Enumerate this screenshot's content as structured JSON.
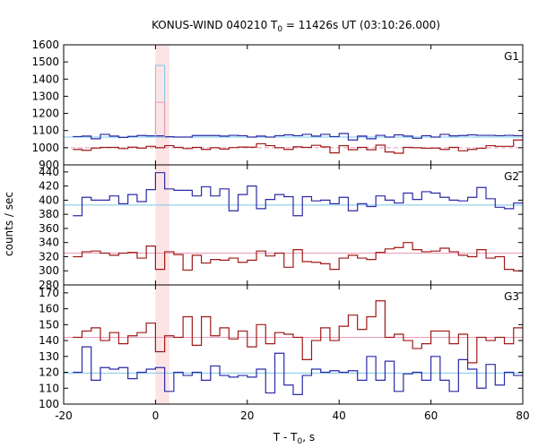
{
  "chart_data": {
    "type": "line",
    "title_main": "KONUS-WIND 040210 T",
    "title_sub": "0",
    "title_rest": " = 11426s UT (03:10:26.000)",
    "xlabel_main": "T - T",
    "xlabel_sub": "0",
    "xlabel_rest": ", s",
    "ylabel": "counts / sec",
    "xlim": [
      -20,
      80
    ],
    "xticks": [
      -20,
      0,
      20,
      40,
      60,
      80
    ],
    "highlight": {
      "x0": 0,
      "x1": 3,
      "color": "#fde4e4"
    },
    "grid": false,
    "panels": [
      {
        "label": "G1",
        "ylim": [
          900,
          1600
        ],
        "yticks": [
          900,
          1000,
          1100,
          1200,
          1300,
          1400,
          1500,
          1600
        ],
        "yticks_labeled": [
          900,
          1000,
          1100,
          1200,
          1300,
          1400,
          1500,
          1600
        ],
        "series": [
          {
            "color": "#2a2aa8",
            "bg": 1062,
            "bg_color": "#78c8e8",
            "x": [
              -17,
              -15,
              -13,
              -11,
              -9,
              -7,
              -5,
              -3,
              -1,
              1,
              3,
              5,
              7,
              9,
              11,
              13,
              15,
              17,
              19,
              21,
              23,
              25,
              27,
              29,
              31,
              33,
              35,
              37,
              39,
              41,
              43,
              45,
              47,
              49,
              51,
              53,
              55,
              57,
              59,
              61,
              63,
              65,
              67,
              69,
              71,
              73,
              75,
              77,
              79
            ],
            "values": [
              1065,
              1068,
              1052,
              1078,
              1068,
              1060,
              1066,
              1071,
              1069,
              1069,
              1064,
              1062,
              1062,
              1071,
              1071,
              1071,
              1068,
              1072,
              1070,
              1062,
              1068,
              1062,
              1070,
              1075,
              1070,
              1078,
              1068,
              1078,
              1065,
              1083,
              1045,
              1068,
              1052,
              1072,
              1062,
              1075,
              1068,
              1055,
              1070,
              1062,
              1078,
              1069,
              1071,
              1075,
              1072,
              1072,
              1070,
              1072,
              1070
            ]
          },
          {
            "color": "#a01818",
            "bg": 1000,
            "bg_color": "#e89ab8",
            "x": [
              -17,
              -15,
              -13,
              -11,
              -9,
              -7,
              -5,
              -3,
              -1,
              1,
              3,
              5,
              7,
              9,
              11,
              13,
              15,
              17,
              19,
              21,
              23,
              25,
              27,
              29,
              31,
              33,
              35,
              37,
              39,
              41,
              43,
              45,
              47,
              49,
              51,
              53,
              55,
              57,
              59,
              61,
              63,
              65,
              67,
              69,
              71,
              73,
              75,
              77,
              79
            ],
            "values": [
              990,
              985,
              998,
              1002,
              1002,
              995,
              1003,
              998,
              1008,
              1000,
              1012,
              1002,
              995,
              1002,
              990,
              1000,
              992,
              1001,
              1004,
              1003,
              1023,
              1012,
              1000,
              990,
              1005,
              1002,
              1014,
              1005,
              970,
              1012,
              988,
              1002,
              988,
              1015,
              975,
              968,
              1002,
              1000,
              997,
              998,
              990,
              1002,
              982,
              990,
              997,
              1012,
              1008,
              1008,
              1045
            ]
          },
          {
            "color": "#78c8e8",
            "x": [
              1
            ],
            "values": [
              1480
            ],
            "step_only": true
          },
          {
            "color": "#e89ab8",
            "x": [
              1
            ],
            "values": [
              1265
            ],
            "step_only": true
          }
        ]
      },
      {
        "label": "G2",
        "ylim": [
          280,
          450
        ],
        "yticks": [
          280,
          300,
          320,
          340,
          360,
          380,
          400,
          420,
          440
        ],
        "yticks_labeled": [
          280,
          300,
          320,
          340,
          360,
          380,
          400,
          420,
          440
        ],
        "series": [
          {
            "color": "#2a2aa8",
            "bg": 393,
            "bg_color": "#78c8e8",
            "x": [
              -17,
              -15,
              -13,
              -11,
              -9,
              -7,
              -5,
              -3,
              -1,
              1,
              3,
              5,
              7,
              9,
              11,
              13,
              15,
              17,
              19,
              21,
              23,
              25,
              27,
              29,
              31,
              33,
              35,
              37,
              39,
              41,
              43,
              45,
              47,
              49,
              51,
              53,
              55,
              57,
              59,
              61,
              63,
              65,
              67,
              69,
              71,
              73,
              75,
              77,
              79
            ],
            "values": [
              378,
              404,
              400,
              400,
              406,
              395,
              408,
              398,
              415,
              439,
              416,
              414,
              414,
              406,
              419,
              406,
              416,
              385,
              408,
              420,
              388,
              401,
              408,
              405,
              378,
              405,
              399,
              400,
              395,
              404,
              385,
              395,
              391,
              406,
              400,
              396,
              410,
              401,
              412,
              410,
              404,
              400,
              399,
              404,
              418,
              402,
              390,
              388,
              396
            ]
          },
          {
            "color": "#a01818",
            "bg": 325,
            "bg_color": "#e89ab8",
            "x": [
              -17,
              -15,
              -13,
              -11,
              -9,
              -7,
              -5,
              -3,
              -1,
              1,
              3,
              5,
              7,
              9,
              11,
              13,
              15,
              17,
              19,
              21,
              23,
              25,
              27,
              29,
              31,
              33,
              35,
              37,
              39,
              41,
              43,
              45,
              47,
              49,
              51,
              53,
              55,
              57,
              59,
              61,
              63,
              65,
              67,
              69,
              71,
              73,
              75,
              77,
              79
            ],
            "values": [
              320,
              327,
              328,
              325,
              322,
              325,
              326,
              318,
              335,
              302,
              327,
              323,
              301,
              322,
              311,
              316,
              315,
              318,
              312,
              315,
              328,
              321,
              325,
              305,
              330,
              313,
              312,
              310,
              302,
              318,
              322,
              318,
              316,
              326,
              331,
              333,
              340,
              330,
              327,
              328,
              332,
              327,
              322,
              320,
              330,
              318,
              320,
              302,
              300
            ]
          }
        ]
      },
      {
        "label": "G3",
        "ylim": [
          100,
          175
        ],
        "yticks": [
          100,
          110,
          120,
          130,
          140,
          150,
          160,
          170
        ],
        "yticks_labeled": [
          100,
          110,
          120,
          130,
          140,
          150,
          160,
          170
        ],
        "series": [
          {
            "color": "#2a2aa8",
            "bg": 119.5,
            "bg_color": "#78c8e8",
            "x": [
              -17,
              -15,
              -13,
              -11,
              -9,
              -7,
              -5,
              -3,
              -1,
              1,
              3,
              5,
              7,
              9,
              11,
              13,
              15,
              17,
              19,
              21,
              23,
              25,
              27,
              29,
              31,
              33,
              35,
              37,
              39,
              41,
              43,
              45,
              47,
              49,
              51,
              53,
              55,
              57,
              59,
              61,
              63,
              65,
              67,
              69,
              71,
              73,
              75,
              77,
              79
            ],
            "values": [
              120,
              136,
              115,
              123,
              122,
              123,
              116,
              120,
              122,
              123,
              108,
              120,
              118,
              120,
              115,
              124,
              118,
              117,
              118,
              117,
              122,
              107,
              132,
              112,
              106,
              118,
              122,
              120,
              121,
              120,
              121,
              115,
              130,
              115,
              127,
              108,
              119,
              120,
              115,
              130,
              115,
              108,
              128,
              122,
              110,
              125,
              112,
              120,
              118
            ]
          },
          {
            "color": "#a01818",
            "bg": 142,
            "bg_color": "#e89ab8",
            "x": [
              -17,
              -15,
              -13,
              -11,
              -9,
              -7,
              -5,
              -3,
              -1,
              1,
              3,
              5,
              7,
              9,
              11,
              13,
              15,
              17,
              19,
              21,
              23,
              25,
              27,
              29,
              31,
              33,
              35,
              37,
              39,
              41,
              43,
              45,
              47,
              49,
              51,
              53,
              55,
              57,
              59,
              61,
              63,
              65,
              67,
              69,
              71,
              73,
              75,
              77,
              79
            ],
            "values": [
              142,
              146,
              148,
              140,
              145,
              138,
              143,
              145,
              151,
              133,
              143,
              142,
              155,
              137,
              155,
              143,
              148,
              141,
              146,
              136,
              150,
              138,
              145,
              144,
              142,
              128,
              140,
              148,
              140,
              149,
              156,
              147,
              155,
              165,
              142,
              144,
              140,
              135,
              138,
              146,
              146,
              138,
              144,
              126,
              142,
              140,
              142,
              138,
              148
            ]
          }
        ]
      }
    ]
  }
}
